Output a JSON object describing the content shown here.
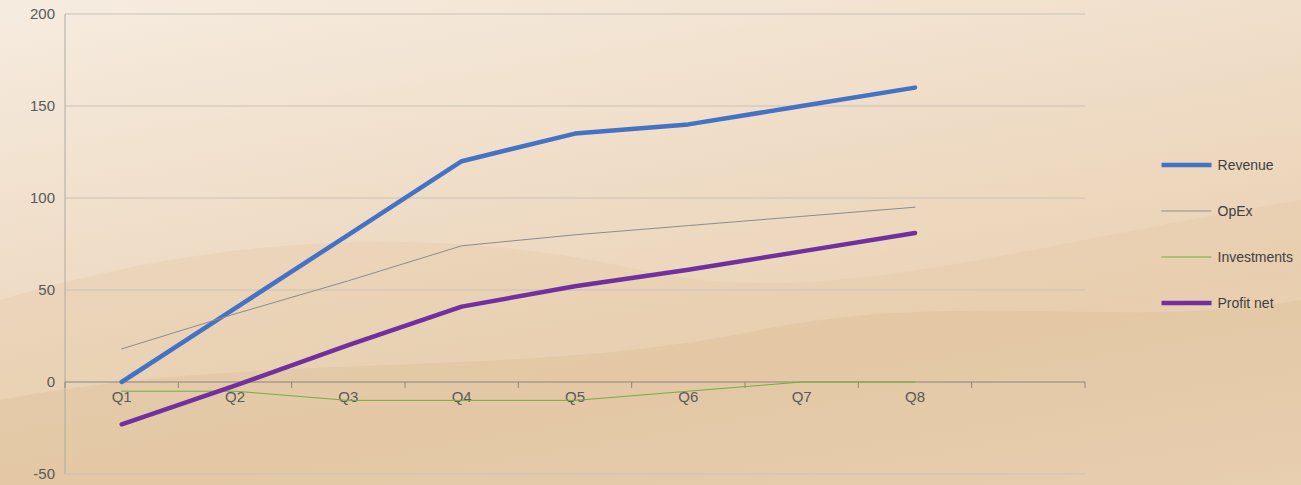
{
  "chart_data": {
    "type": "line",
    "categories": [
      "Q1",
      "Q2",
      "Q3",
      "Q4",
      "Q5",
      "Q6",
      "Q7",
      "Q8",
      null
    ],
    "series": [
      {
        "name": "Revenue",
        "color": "#4472c4",
        "line_style": "thick",
        "values": [
          0,
          40,
          80,
          120,
          135,
          140,
          150,
          160,
          null
        ]
      },
      {
        "name": "OpEx",
        "color": "#8c8c8c",
        "line_style": "thin",
        "values": [
          18,
          37,
          55,
          74,
          80,
          85,
          90,
          95,
          null
        ]
      },
      {
        "name": "Investments",
        "color": "#70ad47",
        "line_style": "thin",
        "values": [
          -5,
          -5,
          -10,
          -10,
          -10,
          -5,
          0,
          0,
          null
        ]
      },
      {
        "name": "Profit net",
        "color": "#7030a0",
        "line_style": "thick",
        "values": [
          -23,
          -2,
          20,
          41,
          52,
          61,
          71,
          81,
          null
        ]
      }
    ],
    "ylim": [
      -50,
      200
    ],
    "yticks": [
      -50,
      0,
      50,
      100,
      150,
      200
    ],
    "grid": true,
    "legend": "right"
  }
}
